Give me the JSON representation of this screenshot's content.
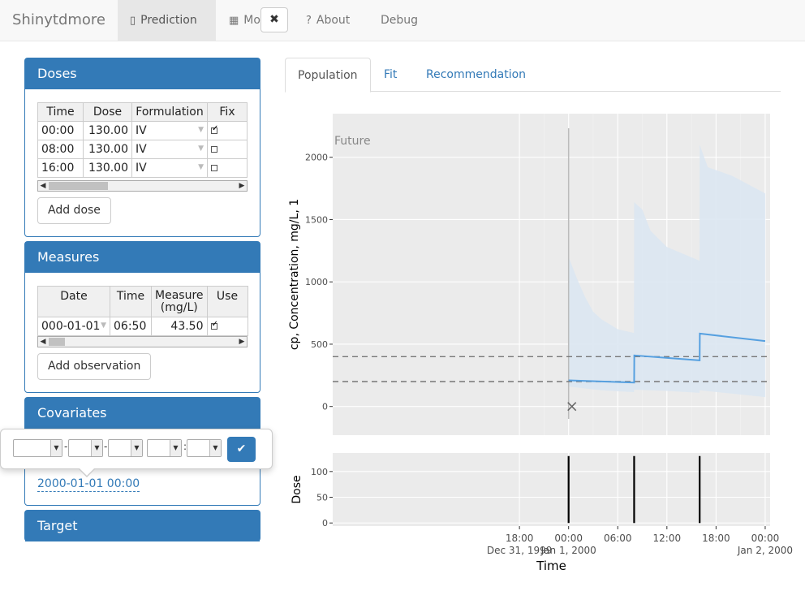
{
  "navbar": {
    "brand": "Shinytdmore",
    "items": [
      {
        "label": "Prediction",
        "icon": "id-card-icon",
        "active": true
      },
      {
        "label": "Model",
        "icon": "chip-icon",
        "active": false
      },
      {
        "label": "About",
        "icon": "question-icon",
        "active": false
      },
      {
        "label": "Debug",
        "icon": "",
        "active": false
      }
    ]
  },
  "doses": {
    "title": "Doses",
    "columns": [
      "Time",
      "Dose",
      "Formulation",
      "Fix"
    ],
    "rows": [
      {
        "time": "00:00",
        "dose": "130.00",
        "formulation": "IV",
        "fix": true
      },
      {
        "time": "08:00",
        "dose": "130.00",
        "formulation": "IV",
        "fix": false
      },
      {
        "time": "16:00",
        "dose": "130.00",
        "formulation": "IV",
        "fix": false
      }
    ],
    "add_label": "Add dose"
  },
  "measures": {
    "title": "Measures",
    "columns": [
      "Date",
      "Time",
      "Measure\n(mg/L)",
      "Use"
    ],
    "rows": [
      {
        "date": "000-01-01",
        "time": "06:50",
        "measure": "43.50",
        "use": true
      }
    ],
    "add_label": "Add observation"
  },
  "covariates": {
    "title": "Covariates",
    "date_value": "2000-01-01 00:00",
    "popover": {
      "date_sep": "-",
      "time_sep": ":"
    }
  },
  "target": {
    "title": "Target"
  },
  "tabs": [
    {
      "label": "Population",
      "active": true
    },
    {
      "label": "Fit",
      "active": false
    },
    {
      "label": "Recommendation",
      "active": false
    }
  ],
  "chart_data": [
    {
      "type": "line",
      "ylabel": "cp, Concentration, mg/L, 1",
      "annotation": "Future",
      "ylim": [
        -230,
        2350
      ],
      "y_ticks": [
        0,
        500,
        1000,
        1500,
        2000
      ],
      "xlim_hours": [
        -28.8,
        24.6
      ],
      "series": [
        {
          "points": [
            [
              0,
              210
            ],
            [
              8,
              192
            ],
            [
              8.02,
              410
            ],
            [
              16,
              370
            ],
            [
              16.02,
              585
            ],
            [
              24,
              525
            ]
          ],
          "color": "#56a0e0"
        }
      ],
      "ribbon": {
        "upper": [
          [
            0,
            1200
          ],
          [
            1,
            1030
          ],
          [
            2,
            880
          ],
          [
            3,
            760
          ],
          [
            4,
            700
          ],
          [
            6,
            620
          ],
          [
            7.98,
            590
          ],
          [
            8,
            1640
          ],
          [
            9,
            1580
          ],
          [
            10,
            1410
          ],
          [
            12,
            1280
          ],
          [
            15.98,
            1170
          ],
          [
            16,
            2100
          ],
          [
            17,
            1920
          ],
          [
            20,
            1850
          ],
          [
            24,
            1710
          ]
        ],
        "lower": [
          [
            0,
            160
          ],
          [
            4,
            130
          ],
          [
            7.98,
            115
          ],
          [
            8,
            135
          ],
          [
            12,
            125
          ],
          [
            15.98,
            110
          ],
          [
            16,
            130
          ],
          [
            24,
            75
          ]
        ],
        "color": "#dce7f2"
      },
      "hlines": [
        200,
        400
      ],
      "vline_x": 0,
      "observation": [
        0.4,
        0
      ]
    },
    {
      "type": "bar",
      "ylabel": "Dose",
      "xlabel": "Time",
      "ylim": [
        -6,
        136
      ],
      "y_ticks": [
        0,
        50,
        100
      ],
      "doses": [
        [
          0,
          130
        ],
        [
          8,
          130
        ],
        [
          16,
          130
        ]
      ],
      "x_ticks": [
        {
          "h": -6,
          "label": "18:00",
          "sub": "Dec 31, 1999"
        },
        {
          "h": 0,
          "label": "00:00",
          "sub": "Jan 1, 2000"
        },
        {
          "h": 6,
          "label": "06:00",
          "sub": ""
        },
        {
          "h": 12,
          "label": "12:00",
          "sub": ""
        },
        {
          "h": 18,
          "label": "18:00",
          "sub": ""
        },
        {
          "h": 24,
          "label": "00:00",
          "sub": "Jan 2, 2000"
        }
      ]
    }
  ]
}
